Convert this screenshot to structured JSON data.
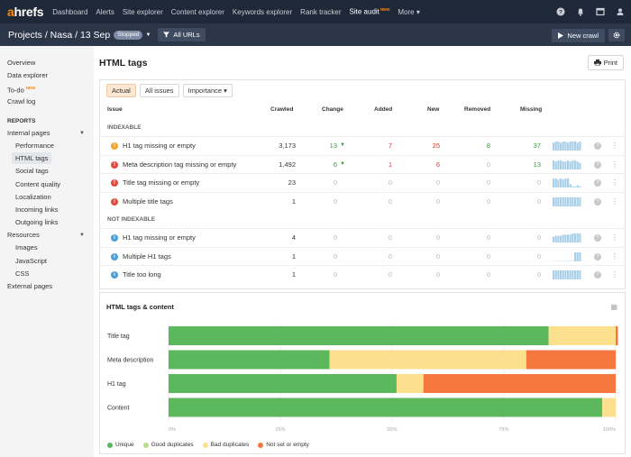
{
  "app": {
    "logo_a": "a",
    "logo_rest": "hrefs",
    "nav": [
      {
        "label": "Dashboard"
      },
      {
        "label": "Alerts"
      },
      {
        "label": "Site explorer"
      },
      {
        "label": "Content explorer"
      },
      {
        "label": "Keywords explorer"
      },
      {
        "label": "Rank tracker"
      },
      {
        "label": "Site audit",
        "badge": "NEW"
      },
      {
        "label": "More ▾"
      }
    ],
    "icons": [
      "help-icon",
      "bell-icon",
      "window-icon",
      "user-icon"
    ]
  },
  "subheader": {
    "breadcrumb": "Projects  /  Nasa  /  13 Sep",
    "status": "Stopped",
    "filter_label": "All URLs",
    "new_crawl_label": "New crawl"
  },
  "sidebar": {
    "top": [
      {
        "label": "Overview"
      },
      {
        "label": "Data explorer"
      },
      {
        "label": "To-do",
        "badge": "NEW"
      },
      {
        "label": "Crawl log"
      }
    ],
    "reports_heading": "REPORTS",
    "internal_label": "Internal pages",
    "internal": [
      {
        "label": "Performance"
      },
      {
        "label": "HTML tags",
        "active": true
      },
      {
        "label": "Social tags"
      },
      {
        "label": "Content quality"
      },
      {
        "label": "Localization"
      },
      {
        "label": "Incoming links"
      },
      {
        "label": "Outgoing links"
      }
    ],
    "resources_label": "Resources",
    "resources": [
      {
        "label": "Images"
      },
      {
        "label": "JavaScript"
      },
      {
        "label": "CSS"
      }
    ],
    "external_label": "External pages"
  },
  "main": {
    "title": "HTML tags",
    "print_label": "Print",
    "filters": {
      "actual": "Actual",
      "all_issues": "All issues",
      "importance": "Importance ▾"
    },
    "columns": {
      "issue": "Issue",
      "crawled": "Crawled",
      "change": "Change",
      "added": "Added",
      "new": "New",
      "removed": "Removed",
      "missing": "Missing"
    },
    "groups": [
      {
        "label": "INDEXABLE",
        "rows": [
          {
            "issue": "H1 tag missing or empty",
            "severity": "warning",
            "crawled": "3,173",
            "change": "13",
            "change_dir": "down",
            "added": "7",
            "new": "25",
            "removed": "8",
            "missing": "37",
            "spark": [
              7,
              8,
              8,
              7,
              8,
              8,
              7,
              8,
              8,
              8,
              7,
              8
            ]
          },
          {
            "issue": "Meta description tag missing or empty",
            "severity": "error",
            "crawled": "1,492",
            "change": "6",
            "change_dir": "down",
            "added": "1",
            "new": "6",
            "removed": "0",
            "missing": "13",
            "spark": [
              8,
              7,
              8,
              8,
              7,
              7,
              8,
              7,
              8,
              8,
              7,
              6
            ]
          },
          {
            "issue": "Title tag missing or empty",
            "severity": "error",
            "crawled": "23",
            "change": "0",
            "added": "0",
            "new": "0",
            "removed": "0",
            "missing": "0",
            "spark": [
              8,
              8,
              7,
              8,
              7,
              8,
              8,
              3,
              1,
              1,
              2,
              1
            ]
          },
          {
            "issue": "Multiple title tags",
            "severity": "error",
            "crawled": "1",
            "change": "0",
            "added": "0",
            "new": "0",
            "removed": "0",
            "missing": "0",
            "spark": [
              8,
              8,
              8,
              8,
              8,
              8,
              8,
              8,
              8,
              8,
              8,
              8
            ]
          }
        ]
      },
      {
        "label": "NOT INDEXABLE",
        "rows": [
          {
            "issue": "H1 tag missing or empty",
            "severity": "info",
            "crawled": "4",
            "change": "0",
            "added": "0",
            "new": "0",
            "removed": "0",
            "missing": "0",
            "spark": [
              5,
              6,
              6,
              6,
              7,
              7,
              7,
              7,
              8,
              8,
              8,
              8
            ]
          },
          {
            "issue": "Multiple H1 tags",
            "severity": "info",
            "crawled": "1",
            "change": "0",
            "added": "0",
            "new": "0",
            "removed": "0",
            "missing": "0",
            "spark": [
              0,
              0,
              0,
              0,
              0,
              0,
              0,
              0,
              0,
              8,
              8,
              8
            ]
          },
          {
            "issue": "Title too long",
            "severity": "info",
            "crawled": "1",
            "change": "0",
            "added": "0",
            "new": "0",
            "removed": "0",
            "missing": "0",
            "spark": [
              8,
              8,
              8,
              8,
              8,
              8,
              8,
              8,
              8,
              8,
              8,
              8
            ]
          }
        ]
      }
    ]
  },
  "chart_data": {
    "type": "bar",
    "orientation": "horizontal",
    "stacked": true,
    "title": "HTML tags & content",
    "categories": [
      "Title tag",
      "Meta description",
      "H1 tag",
      "Content"
    ],
    "series": [
      {
        "name": "Unique",
        "color": "#5cb85c",
        "values": [
          85,
          36,
          51,
          97
        ]
      },
      {
        "name": "Good duplicates",
        "color": "#b8dd8c",
        "values": [
          0,
          0,
          0,
          0
        ]
      },
      {
        "name": "Bad duplicates",
        "color": "#fde08e",
        "values": [
          15,
          44,
          6,
          3
        ]
      },
      {
        "name": "Not set or empty",
        "color": "#f5773e",
        "values": [
          0.5,
          20,
          43,
          0
        ]
      }
    ],
    "x_ticks": [
      "0%",
      "25%",
      "50%",
      "75%",
      "100%"
    ],
    "xlim": [
      0,
      100
    ],
    "grid": true,
    "legend": "bottom-left"
  }
}
